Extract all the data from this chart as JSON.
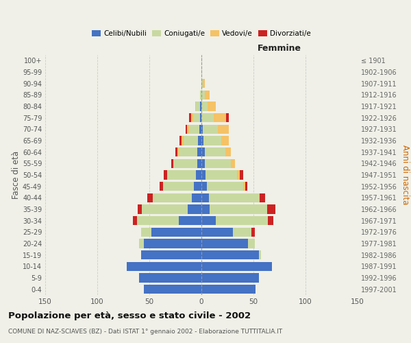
{
  "age_groups": [
    "0-4",
    "5-9",
    "10-14",
    "15-19",
    "20-24",
    "25-29",
    "30-34",
    "35-39",
    "40-44",
    "45-49",
    "50-54",
    "55-59",
    "60-64",
    "65-69",
    "70-74",
    "75-79",
    "80-84",
    "85-89",
    "90-94",
    "95-99",
    "100+"
  ],
  "birth_years": [
    "1997-2001",
    "1992-1996",
    "1987-1991",
    "1982-1986",
    "1977-1981",
    "1972-1976",
    "1967-1971",
    "1962-1966",
    "1957-1961",
    "1952-1956",
    "1947-1951",
    "1942-1946",
    "1937-1941",
    "1932-1936",
    "1927-1931",
    "1922-1926",
    "1917-1921",
    "1912-1916",
    "1907-1911",
    "1902-1906",
    "≤ 1901"
  ],
  "m_cel": [
    55,
    60,
    72,
    58,
    55,
    48,
    22,
    13,
    9,
    7,
    5,
    4,
    4,
    3,
    2,
    1,
    1,
    0,
    0,
    0,
    0
  ],
  "m_con": [
    0,
    0,
    0,
    0,
    5,
    10,
    40,
    44,
    38,
    30,
    28,
    22,
    18,
    14,
    10,
    7,
    4,
    1,
    0,
    0,
    0
  ],
  "m_ved": [
    0,
    0,
    0,
    0,
    0,
    0,
    0,
    0,
    0,
    0,
    0,
    1,
    1,
    2,
    2,
    2,
    1,
    0,
    0,
    0,
    0
  ],
  "m_div": [
    0,
    0,
    0,
    0,
    0,
    0,
    4,
    4,
    5,
    3,
    3,
    2,
    2,
    2,
    1,
    2,
    0,
    0,
    0,
    0,
    0
  ],
  "f_nub": [
    52,
    55,
    68,
    55,
    45,
    30,
    14,
    8,
    7,
    5,
    4,
    3,
    3,
    2,
    1,
    0,
    0,
    0,
    0,
    0,
    0
  ],
  "f_con": [
    0,
    0,
    0,
    2,
    6,
    18,
    50,
    55,
    48,
    35,
    30,
    25,
    20,
    17,
    15,
    12,
    6,
    3,
    1,
    0,
    0
  ],
  "f_ved": [
    0,
    0,
    0,
    0,
    0,
    0,
    0,
    0,
    1,
    2,
    3,
    4,
    5,
    7,
    10,
    12,
    8,
    5,
    2,
    0,
    0
  ],
  "f_div": [
    0,
    0,
    0,
    0,
    0,
    3,
    5,
    8,
    5,
    2,
    3,
    0,
    0,
    0,
    0,
    2,
    0,
    0,
    0,
    0,
    0
  ],
  "colors": {
    "celibe": "#4472C4",
    "coniugato": "#C8D9A0",
    "vedovo": "#F5C265",
    "divorziato": "#CC2222"
  },
  "xlim": 150,
  "title": "Popolazione per età, sesso e stato civile - 2002",
  "subtitle": "COMUNE DI NAZ-SCIAVES (BZ) - Dati ISTAT 1° gennaio 2002 - Elaborazione TUTTITALIA.IT",
  "ylabel_left": "Fasce di età",
  "ylabel_right": "Anni di nascita",
  "xlabel_right": "Femmine",
  "bg_color": "#f0f0e8",
  "grid_color": "#cccccc"
}
